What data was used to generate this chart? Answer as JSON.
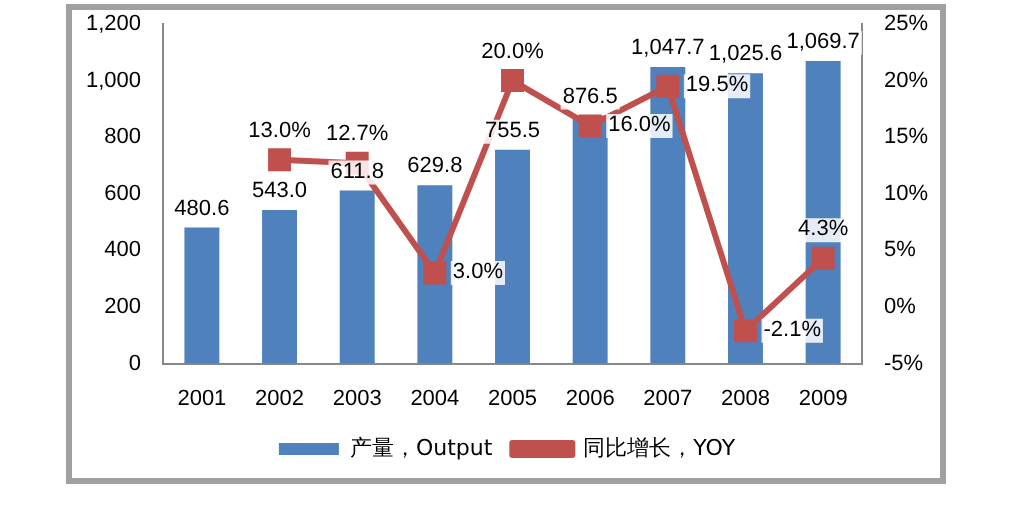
{
  "chart_data": {
    "type": "bar",
    "categories": [
      "2001",
      "2002",
      "2003",
      "2004",
      "2005",
      "2006",
      "2007",
      "2008",
      "2009"
    ],
    "series": [
      {
        "name": "产量，Output",
        "color": "#4f81bd",
        "values": [
          480.6,
          543.0,
          611.8,
          629.8,
          755.5,
          876.5,
          1047.7,
          1025.6,
          1069.7
        ],
        "value_labels": [
          "480.6",
          "543.0",
          "611.8",
          "629.8",
          "755.5",
          "876.5",
          "1,047.7",
          "1,025.6",
          "1,069.7"
        ]
      },
      {
        "name": "同比增长，YOY",
        "type": "line",
        "axis": "y2",
        "color": "#c0504d",
        "values": [
          null,
          13.0,
          12.7,
          3.0,
          20.0,
          16.0,
          19.5,
          -2.1,
          4.3
        ],
        "value_labels": [
          null,
          "13.0%",
          "12.7%",
          "3.0%",
          "20.0%",
          "16.0%",
          "19.5%",
          "-2.1%",
          "4.3%"
        ]
      }
    ],
    "ylim": [
      0,
      1200
    ],
    "yticks": [
      {
        "value": 0,
        "label": "0"
      },
      {
        "value": 200,
        "label": "200"
      },
      {
        "value": 400,
        "label": "400"
      },
      {
        "value": 600,
        "label": "600"
      },
      {
        "value": 800,
        "label": "800"
      },
      {
        "value": 1000,
        "label": "1,000"
      },
      {
        "value": 1200,
        "label": "1,200"
      }
    ],
    "y2lim": [
      -5,
      25
    ],
    "y2ticks": [
      {
        "value": -5,
        "label": "-5%"
      },
      {
        "value": 0,
        "label": "0%"
      },
      {
        "value": 5,
        "label": "5%"
      },
      {
        "value": 10,
        "label": "10%"
      },
      {
        "value": 15,
        "label": "15%"
      },
      {
        "value": 20,
        "label": "20%"
      },
      {
        "value": 25,
        "label": "25%"
      }
    ],
    "marker": "square",
    "grid": false,
    "legend": "bottom"
  }
}
